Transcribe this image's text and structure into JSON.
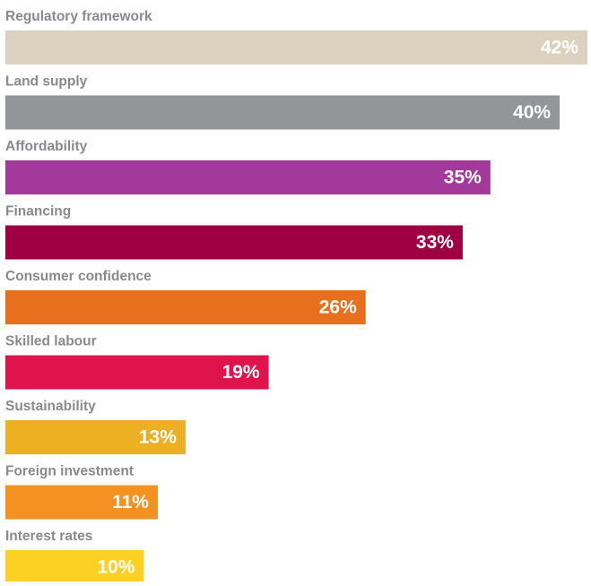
{
  "chart_data": {
    "type": "bar",
    "orientation": "horizontal",
    "categories": [
      "Regulatory framework",
      "Land supply",
      "Affordability",
      "Financing",
      "Consumer confidence",
      "Skilled labour",
      "Sustainability",
      "Foreign investment",
      "Interest rates"
    ],
    "values": [
      42,
      40,
      35,
      33,
      26,
      19,
      13,
      11,
      10
    ],
    "value_labels": [
      "42%",
      "40%",
      "35%",
      "33%",
      "26%",
      "19%",
      "13%",
      "11%",
      "10%"
    ],
    "colors": [
      "#dcd0bf",
      "#939598",
      "#a3399a",
      "#9e0042",
      "#e6701e",
      "#e0144c",
      "#edb023",
      "#f39220",
      "#fdd124"
    ]
  }
}
